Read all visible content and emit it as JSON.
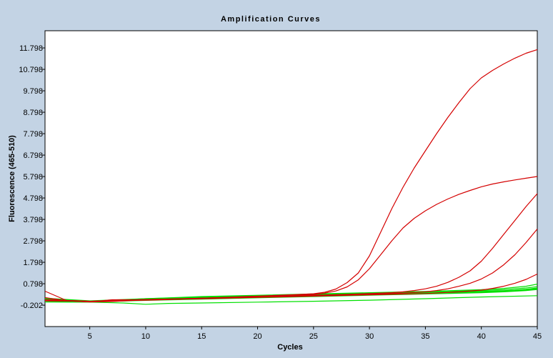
{
  "chart_data": {
    "type": "line",
    "title": "Amplification Curves",
    "xlabel": "Cycles",
    "ylabel": "Fluorescence (465-510)",
    "xlim": [
      1,
      45
    ],
    "ylim": [
      -1.2,
      12.6
    ],
    "xticks": [
      5,
      10,
      15,
      20,
      25,
      30,
      35,
      40,
      45
    ],
    "yticks": [
      -0.202,
      0.798,
      1.798,
      2.798,
      3.798,
      4.798,
      5.798,
      6.798,
      7.798,
      8.798,
      9.798,
      10.798,
      11.798
    ],
    "ytick_labels": [
      "-0.202",
      "0.798",
      "1.798",
      "2.798",
      "3.798",
      "4.798",
      "5.798",
      "6.798",
      "7.798",
      "8.798",
      "9.798",
      "10.798",
      "11.798"
    ],
    "grid": false,
    "legend": "none",
    "colors": {
      "positive": "#d40000",
      "negative": "#00e000",
      "plot_bg": "#ffffff",
      "frame_bg": "#c3d3e4"
    },
    "series": [
      {
        "color": "#d40000",
        "x": [
          1,
          3,
          5,
          7,
          9,
          11,
          13,
          15,
          17,
          19,
          21,
          23,
          25,
          26,
          27,
          28,
          29,
          30,
          31,
          32,
          33,
          34,
          35,
          36,
          37,
          38,
          39,
          40,
          41,
          42,
          43,
          44,
          45
        ],
        "y": [
          0.45,
          0.0,
          -0.05,
          -0.03,
          0.02,
          0.04,
          0.08,
          0.12,
          0.16,
          0.2,
          0.24,
          0.28,
          0.33,
          0.4,
          0.55,
          0.85,
          1.3,
          2.1,
          3.2,
          4.3,
          5.3,
          6.2,
          7.0,
          7.8,
          8.55,
          9.25,
          9.9,
          10.4,
          10.75,
          11.05,
          11.32,
          11.55,
          11.72
        ]
      },
      {
        "color": "#d40000",
        "x": [
          1,
          3,
          5,
          7,
          9,
          11,
          13,
          15,
          17,
          19,
          21,
          23,
          25,
          26,
          27,
          28,
          29,
          30,
          31,
          32,
          33,
          34,
          35,
          36,
          37,
          38,
          39,
          40,
          41,
          42,
          43,
          44,
          45
        ],
        "y": [
          0.15,
          0.0,
          -0.05,
          0.05,
          0.05,
          0.07,
          0.09,
          0.12,
          0.15,
          0.19,
          0.23,
          0.27,
          0.3,
          0.36,
          0.46,
          0.65,
          0.98,
          1.5,
          2.15,
          2.8,
          3.4,
          3.85,
          4.2,
          4.5,
          4.75,
          4.97,
          5.15,
          5.32,
          5.45,
          5.55,
          5.64,
          5.72,
          5.8
        ]
      },
      {
        "color": "#d40000",
        "x": [
          1,
          5,
          10,
          15,
          20,
          25,
          28,
          30,
          32,
          33,
          34,
          35,
          36,
          37,
          38,
          39,
          40,
          41,
          42,
          43,
          44,
          45
        ],
        "y": [
          0.05,
          -0.02,
          0.06,
          0.12,
          0.2,
          0.26,
          0.3,
          0.34,
          0.38,
          0.42,
          0.48,
          0.56,
          0.68,
          0.86,
          1.1,
          1.4,
          1.85,
          2.45,
          3.1,
          3.75,
          4.4,
          5.0
        ]
      },
      {
        "color": "#d40000",
        "x": [
          1,
          5,
          10,
          15,
          20,
          25,
          30,
          33,
          35,
          36,
          37,
          38,
          39,
          40,
          41,
          42,
          43,
          44,
          45
        ],
        "y": [
          0.05,
          -0.02,
          0.05,
          0.1,
          0.17,
          0.24,
          0.3,
          0.36,
          0.42,
          0.48,
          0.56,
          0.68,
          0.82,
          1.02,
          1.3,
          1.68,
          2.15,
          2.72,
          3.35
        ]
      },
      {
        "color": "#d40000",
        "x": [
          1,
          5,
          10,
          15,
          20,
          25,
          30,
          35,
          38,
          40,
          41,
          42,
          43,
          44,
          45
        ],
        "y": [
          0.0,
          -0.02,
          0.04,
          0.1,
          0.16,
          0.22,
          0.28,
          0.34,
          0.42,
          0.5,
          0.58,
          0.68,
          0.82,
          1.0,
          1.25
        ]
      },
      {
        "color": "#00e000",
        "x": [
          1,
          5,
          10,
          15,
          20,
          25,
          30,
          35,
          40,
          42,
          44,
          45
        ],
        "y": [
          0.1,
          -0.04,
          0.1,
          0.18,
          0.24,
          0.3,
          0.36,
          0.42,
          0.48,
          0.52,
          0.6,
          0.66
        ]
      },
      {
        "color": "#00e000",
        "x": [
          1,
          5,
          10,
          15,
          20,
          25,
          30,
          35,
          40,
          42,
          44,
          45
        ],
        "y": [
          0.05,
          -0.02,
          0.08,
          0.16,
          0.22,
          0.28,
          0.33,
          0.38,
          0.44,
          0.47,
          0.52,
          0.57
        ]
      },
      {
        "color": "#00e000",
        "x": [
          1,
          5,
          10,
          15,
          20,
          25,
          30,
          35,
          40,
          42,
          44,
          45
        ],
        "y": [
          0.0,
          -0.04,
          0.05,
          0.12,
          0.18,
          0.24,
          0.3,
          0.36,
          0.42,
          0.46,
          0.54,
          0.6
        ]
      },
      {
        "color": "#00e000",
        "x": [
          1,
          5,
          10,
          15,
          20,
          25,
          30,
          35,
          40,
          42,
          44,
          45
        ],
        "y": [
          -0.05,
          -0.05,
          0.02,
          0.08,
          0.14,
          0.2,
          0.26,
          0.32,
          0.38,
          0.42,
          0.48,
          0.53
        ]
      },
      {
        "color": "#00e000",
        "x": [
          1,
          3,
          5,
          8,
          10,
          12,
          15,
          20,
          25,
          30,
          35,
          40,
          45
        ],
        "y": [
          -0.05,
          -0.06,
          -0.06,
          -0.1,
          -0.16,
          -0.12,
          -0.1,
          -0.06,
          -0.02,
          0.03,
          0.1,
          0.18,
          0.24
        ]
      },
      {
        "color": "#00e000",
        "x": [
          1,
          5,
          10,
          15,
          20,
          25,
          30,
          35,
          40,
          42,
          44,
          45
        ],
        "y": [
          0.12,
          0.0,
          0.1,
          0.2,
          0.26,
          0.32,
          0.38,
          0.44,
          0.52,
          0.58,
          0.68,
          0.78
        ]
      },
      {
        "color": "#00e000",
        "x": [
          1,
          5,
          10,
          15,
          20,
          25,
          30,
          35,
          40,
          42,
          44,
          45
        ],
        "y": [
          0.08,
          -0.02,
          0.06,
          0.14,
          0.2,
          0.25,
          0.3,
          0.36,
          0.41,
          0.44,
          0.5,
          0.55
        ]
      }
    ]
  }
}
